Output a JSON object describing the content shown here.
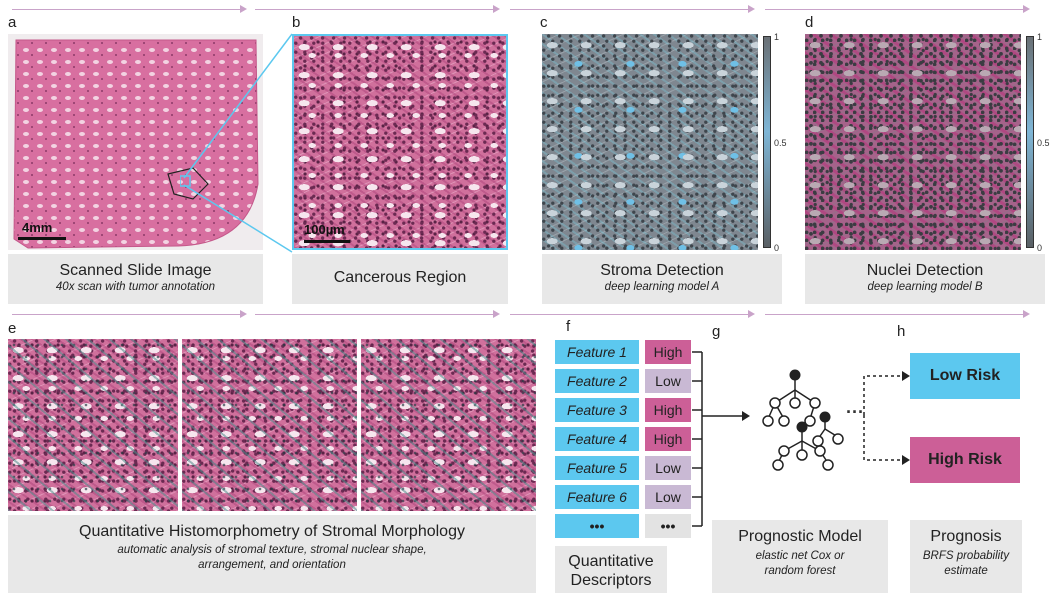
{
  "panels": {
    "a": {
      "letter": "a",
      "title": "Scanned Slide Image",
      "subtitle": "40x scan with tumor annotation",
      "scalebar": "4mm"
    },
    "b": {
      "letter": "b",
      "title": "Cancerous Region",
      "scalebar": "100µm"
    },
    "c": {
      "letter": "c",
      "title": "Stroma Detection",
      "subtitle": "deep learning model A",
      "colorbar": {
        "max": "1",
        "mid": "0.5",
        "min": "0"
      }
    },
    "d": {
      "letter": "d",
      "title": "Nuclei Detection",
      "subtitle": "deep learning model B",
      "colorbar": {
        "max": "1",
        "mid": "0.5",
        "min": "0"
      }
    },
    "e": {
      "letter": "e",
      "title": "Quantitative Histomorphometry of Stromal Morphology",
      "subtitle_line1": "automatic analysis of stromal texture, stromal nuclear shape,",
      "subtitle_line2": "arrangement, and orientation"
    },
    "f": {
      "letter": "f",
      "title_line1": "Quantitative",
      "title_line2": "Descriptors",
      "features": [
        {
          "name": "Feature 1",
          "value": "High"
        },
        {
          "name": "Feature 2",
          "value": "Low"
        },
        {
          "name": "Feature 3",
          "value": "High"
        },
        {
          "name": "Feature 4",
          "value": "High"
        },
        {
          "name": "Feature 5",
          "value": "Low"
        },
        {
          "name": "Feature 6",
          "value": "Low"
        }
      ],
      "ellipsis": "•••"
    },
    "g": {
      "letter": "g",
      "title": "Prognostic Model",
      "subtitle_line1": "elastic net Cox or",
      "subtitle_line2": "random forest",
      "dots": "···"
    },
    "h": {
      "letter": "h",
      "title": "Prognosis",
      "subtitle_line1": "BRFS probability",
      "subtitle_line2": "estimate",
      "low_risk": "Low Risk",
      "high_risk": "High Risk"
    }
  },
  "colors": {
    "cyan": "#5cc8ef",
    "magenta": "#cc5f97",
    "lavender": "#c9b9d4",
    "label_bg": "#e8e8e8",
    "arrow": "#c9a3c9"
  }
}
